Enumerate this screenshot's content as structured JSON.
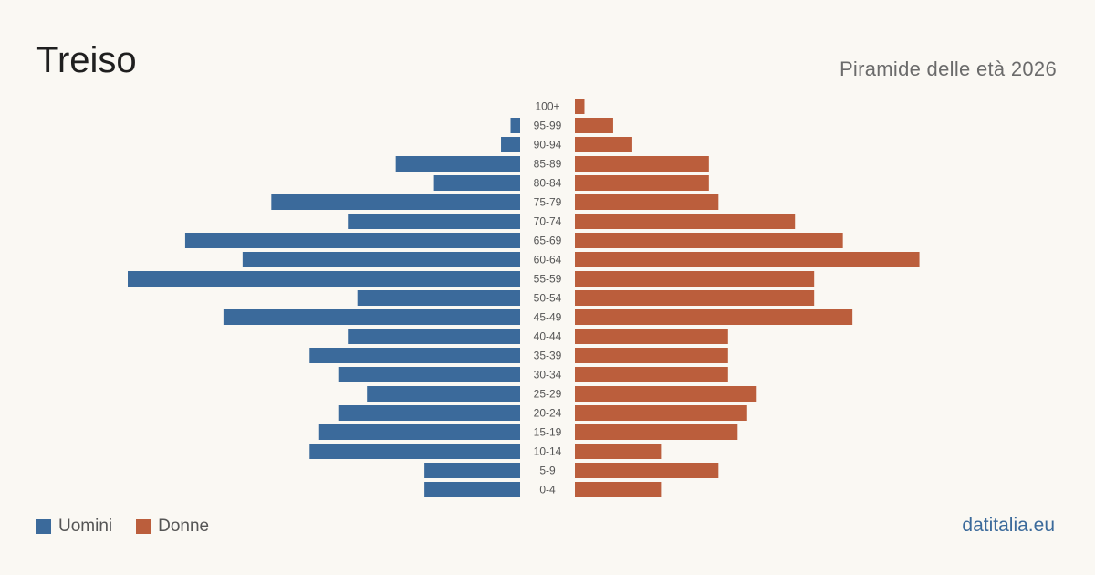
{
  "header": {
    "title": "Treiso",
    "subtitle": "Piramide delle età 2026"
  },
  "legend": {
    "men_label": "Uomini",
    "women_label": "Donne"
  },
  "brand": "datitalia.eu",
  "colors": {
    "men": "#3b6a9b",
    "women": "#bb5e3c",
    "age_label": "#555555",
    "background": "#faf8f3"
  },
  "chart_data": {
    "type": "bar",
    "orientation": "horizontal-population-pyramid",
    "categories": [
      "100+",
      "95-99",
      "90-94",
      "85-89",
      "80-84",
      "75-79",
      "70-74",
      "65-69",
      "60-64",
      "55-59",
      "50-54",
      "45-49",
      "40-44",
      "35-39",
      "30-34",
      "25-29",
      "20-24",
      "15-19",
      "10-14",
      "5-9",
      "0-4"
    ],
    "series": [
      {
        "name": "Uomini",
        "values": [
          0,
          1,
          2,
          13,
          9,
          26,
          18,
          35,
          29,
          41,
          17,
          31,
          18,
          22,
          19,
          16,
          19,
          21,
          22,
          10,
          10
        ]
      },
      {
        "name": "Donne",
        "values": [
          1,
          4,
          6,
          14,
          14,
          15,
          23,
          28,
          36,
          25,
          25,
          29,
          16,
          16,
          16,
          19,
          18,
          17,
          9,
          15,
          9
        ]
      }
    ],
    "xlim": [
      0,
      42
    ],
    "grid": false,
    "legend_position": "bottom-left"
  }
}
